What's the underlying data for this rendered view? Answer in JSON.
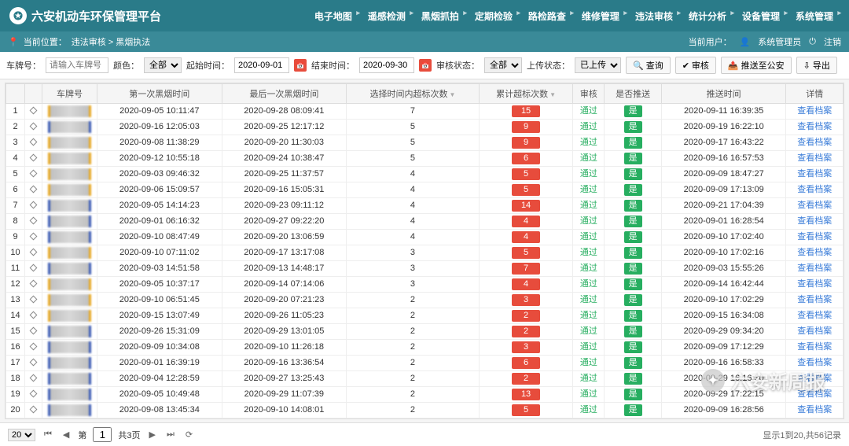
{
  "header": {
    "title": "六安机动车环保管理平台",
    "nav": [
      "电子地图",
      "遥感检测",
      "黑烟抓拍",
      "定期检验",
      "路检路查",
      "维修管理",
      "违法审核",
      "统计分析",
      "设备管理",
      "系统管理"
    ]
  },
  "breadcrumb": {
    "label": "当前位置：",
    "path": "违法审核 > 黑烟执法",
    "user_label": "当前用户：",
    "user": "系统管理员",
    "logout": "注销"
  },
  "filter": {
    "plate_label": "车牌号：",
    "plate_ph": "请输入车牌号",
    "color_label": "颜色：",
    "color_val": "全部",
    "start_label": "起始时间：",
    "start_val": "2020-09-01",
    "end_label": "结束时间：",
    "end_val": "2020-09-30",
    "audit_label": "审核状态：",
    "audit_val": "全部",
    "upload_label": "上传状态：",
    "upload_val": "已上传",
    "btn_search": "查询",
    "btn_audit": "审核",
    "btn_push": "推送至公安",
    "btn_export": "导出"
  },
  "columns": [
    "",
    "",
    "车牌号",
    "第一次黑烟时间",
    "最后一次黑烟时间",
    "选择时间内超标次数",
    "累计超标次数",
    "审核",
    "是否推送",
    "推送时间",
    "详情"
  ],
  "audit_text": "通过",
  "push_text": "是",
  "detail_text": "查看档案",
  "plate_colors": [
    "y",
    "b",
    "y",
    "y",
    "y",
    "y",
    "b",
    "b",
    "b",
    "y",
    "b",
    "y",
    "y",
    "y",
    "b",
    "b",
    "b",
    "b",
    "b",
    "b"
  ],
  "rows": [
    [
      "2020-09-05 10:11:47",
      "2020-09-28 08:09:41",
      "7",
      "15",
      "2020-09-11 16:39:35"
    ],
    [
      "2020-09-16 12:05:03",
      "2020-09-25 12:17:12",
      "5",
      "9",
      "2020-09-19 16:22:10"
    ],
    [
      "2020-09-08 11:38:29",
      "2020-09-20 11:30:03",
      "5",
      "9",
      "2020-09-17 16:43:22"
    ],
    [
      "2020-09-12 10:55:18",
      "2020-09-24 10:38:47",
      "5",
      "6",
      "2020-09-16 16:57:53"
    ],
    [
      "2020-09-03 09:46:32",
      "2020-09-25 11:37:57",
      "4",
      "5",
      "2020-09-09 18:47:27"
    ],
    [
      "2020-09-06 15:09:57",
      "2020-09-16 15:05:31",
      "4",
      "5",
      "2020-09-09 17:13:09"
    ],
    [
      "2020-09-05 14:14:23",
      "2020-09-23 09:11:12",
      "4",
      "14",
      "2020-09-21 17:04:39"
    ],
    [
      "2020-09-01 06:16:32",
      "2020-09-27 09:22:20",
      "4",
      "4",
      "2020-09-01 16:28:54"
    ],
    [
      "2020-09-10 08:47:49",
      "2020-09-20 13:06:59",
      "4",
      "4",
      "2020-09-10 17:02:40"
    ],
    [
      "2020-09-10 07:11:02",
      "2020-09-17 13:17:08",
      "3",
      "5",
      "2020-09-10 17:02:16"
    ],
    [
      "2020-09-03 14:51:58",
      "2020-09-13 14:48:17",
      "3",
      "7",
      "2020-09-03 15:55:26"
    ],
    [
      "2020-09-05 10:37:17",
      "2020-09-14 07:14:06",
      "3",
      "4",
      "2020-09-14 16:42:44"
    ],
    [
      "2020-09-10 06:51:45",
      "2020-09-20 07:21:23",
      "2",
      "3",
      "2020-09-10 17:02:29"
    ],
    [
      "2020-09-15 13:07:49",
      "2020-09-26 11:05:23",
      "2",
      "2",
      "2020-09-15 16:34:08"
    ],
    [
      "2020-09-26 15:31:09",
      "2020-09-29 13:01:05",
      "2",
      "2",
      "2020-09-29 09:34:20"
    ],
    [
      "2020-09-09 10:34:08",
      "2020-09-10 11:26:18",
      "2",
      "3",
      "2020-09-09 17:12:29"
    ],
    [
      "2020-09-01 16:39:19",
      "2020-09-16 13:36:54",
      "2",
      "6",
      "2020-09-16 16:58:33"
    ],
    [
      "2020-09-04 12:28:59",
      "2020-09-27 13:25:43",
      "2",
      "2",
      "2020-09-29 16:16:30"
    ],
    [
      "2020-09-05 10:49:48",
      "2020-09-29 11:07:39",
      "2",
      "13",
      "2020-09-29 17:22:15"
    ],
    [
      "2020-09-08 13:45:34",
      "2020-09-10 14:08:01",
      "2",
      "5",
      "2020-09-09 16:28:56"
    ]
  ],
  "pager": {
    "size": "20",
    "page_label": "第",
    "page": "1",
    "total_pages": "共3页",
    "info": "显示1到20,共56记录"
  },
  "watermark": "六安新周报",
  "colors": {
    "header": "#2a7b89",
    "breadcrumb": "#3a8a98",
    "badge_red": "#e74c3c",
    "badge_green": "#27ae60",
    "link": "#3b7dd8"
  }
}
